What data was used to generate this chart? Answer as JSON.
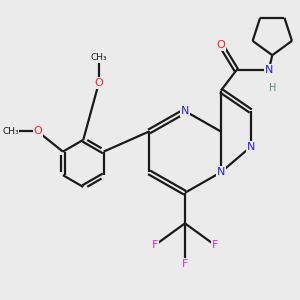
{
  "background_color": "#ebebeb",
  "bond_color": "#1a1a1a",
  "bond_width": 1.6,
  "dbo": 0.08,
  "colors": {
    "N": "#2020ff",
    "O": "#ff2020",
    "F": "#cc33cc",
    "H": "#558888",
    "C": "#1a1a1a"
  },
  "fs": 8.0
}
